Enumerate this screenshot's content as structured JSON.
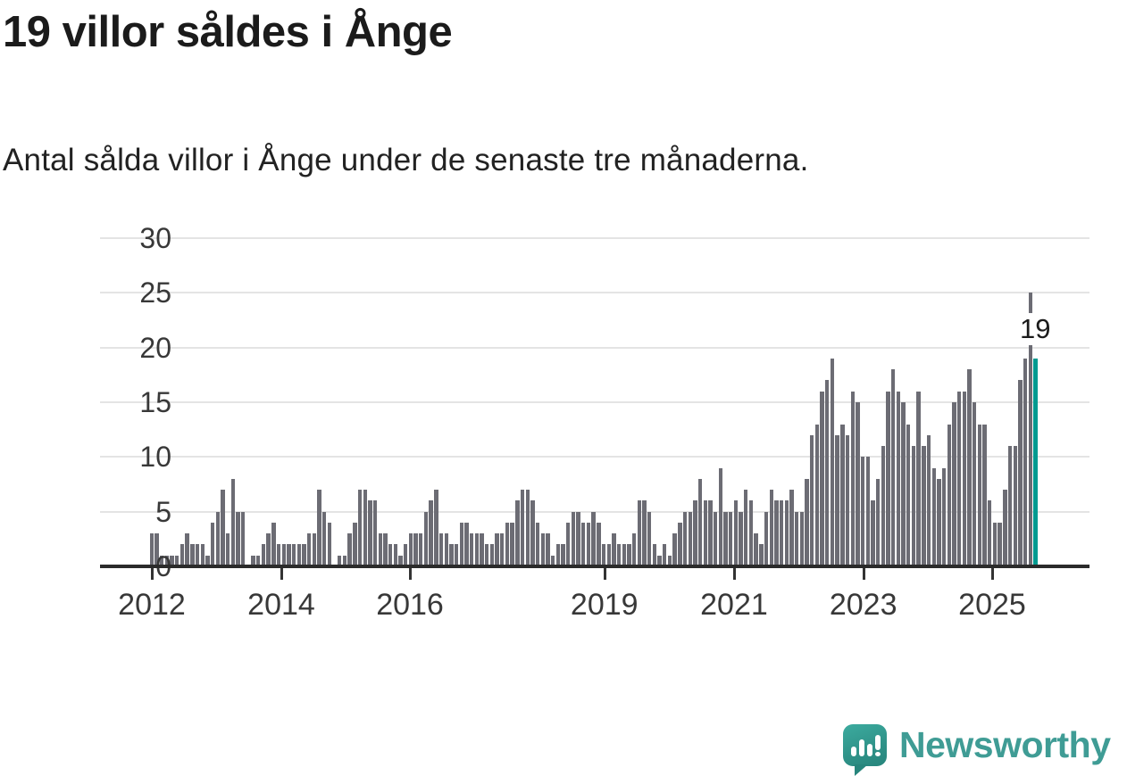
{
  "title": "19 villor såldes i Ånge",
  "subtitle": "Antal sålda villor i Ånge under de senaste tre månaderna.",
  "annotation_label": "19",
  "logo": {
    "text": "Newsworthy",
    "color": "#3f9c95",
    "icon": "newsworthy-speech-bubble-chart-icon"
  },
  "chart_data": {
    "type": "bar",
    "title": "19 villor såldes i Ånge",
    "xlabel": "",
    "ylabel": "",
    "ylim": [
      0,
      30
    ],
    "yticks": [
      0,
      5,
      10,
      15,
      20,
      25,
      30
    ],
    "grid": true,
    "legend": null,
    "bar_color": "#6c6c74",
    "highlight_color": "#009a90",
    "highlight_index": 174,
    "highlight_value": 19,
    "xticks": [
      {
        "label": "2012",
        "pos": 0.003
      },
      {
        "label": "2014",
        "pos": 0.1486
      },
      {
        "label": "2016",
        "pos": 0.2932
      },
      {
        "label": "2019",
        "pos": 0.5118
      },
      {
        "label": "2021",
        "pos": 0.6576
      },
      {
        "label": "2023",
        "pos": 0.8029
      },
      {
        "label": "2025",
        "pos": 0.9478
      }
    ],
    "values": [
      3,
      3,
      1,
      1,
      1,
      1,
      2,
      3,
      2,
      2,
      2,
      1,
      4,
      5,
      7,
      3,
      8,
      5,
      5,
      0,
      1,
      1,
      2,
      3,
      4,
      2,
      2,
      2,
      2,
      2,
      2,
      3,
      3,
      7,
      5,
      4,
      0,
      1,
      1,
      3,
      4,
      7,
      7,
      6,
      6,
      3,
      3,
      2,
      2,
      1,
      2,
      3,
      3,
      3,
      5,
      6,
      7,
      3,
      3,
      2,
      2,
      4,
      4,
      3,
      3,
      3,
      2,
      2,
      3,
      3,
      4,
      4,
      6,
      7,
      7,
      6,
      4,
      3,
      3,
      1,
      2,
      2,
      4,
      5,
      5,
      4,
      4,
      5,
      4,
      2,
      2,
      3,
      2,
      2,
      2,
      3,
      6,
      6,
      5,
      2,
      1,
      2,
      1,
      3,
      4,
      5,
      5,
      6,
      8,
      6,
      6,
      5,
      9,
      5,
      5,
      6,
      5,
      7,
      6,
      3,
      2,
      5,
      7,
      6,
      6,
      6,
      7,
      5,
      5,
      8,
      12,
      13,
      16,
      17,
      19,
      12,
      13,
      12,
      16,
      15,
      10,
      10,
      6,
      8,
      11,
      16,
      18,
      16,
      15,
      13,
      11,
      16,
      11,
      12,
      9,
      8,
      9,
      13,
      15,
      16,
      16,
      18,
      15,
      13,
      13,
      6,
      4,
      4,
      7,
      11,
      11,
      17,
      19,
      25,
      19
    ]
  }
}
